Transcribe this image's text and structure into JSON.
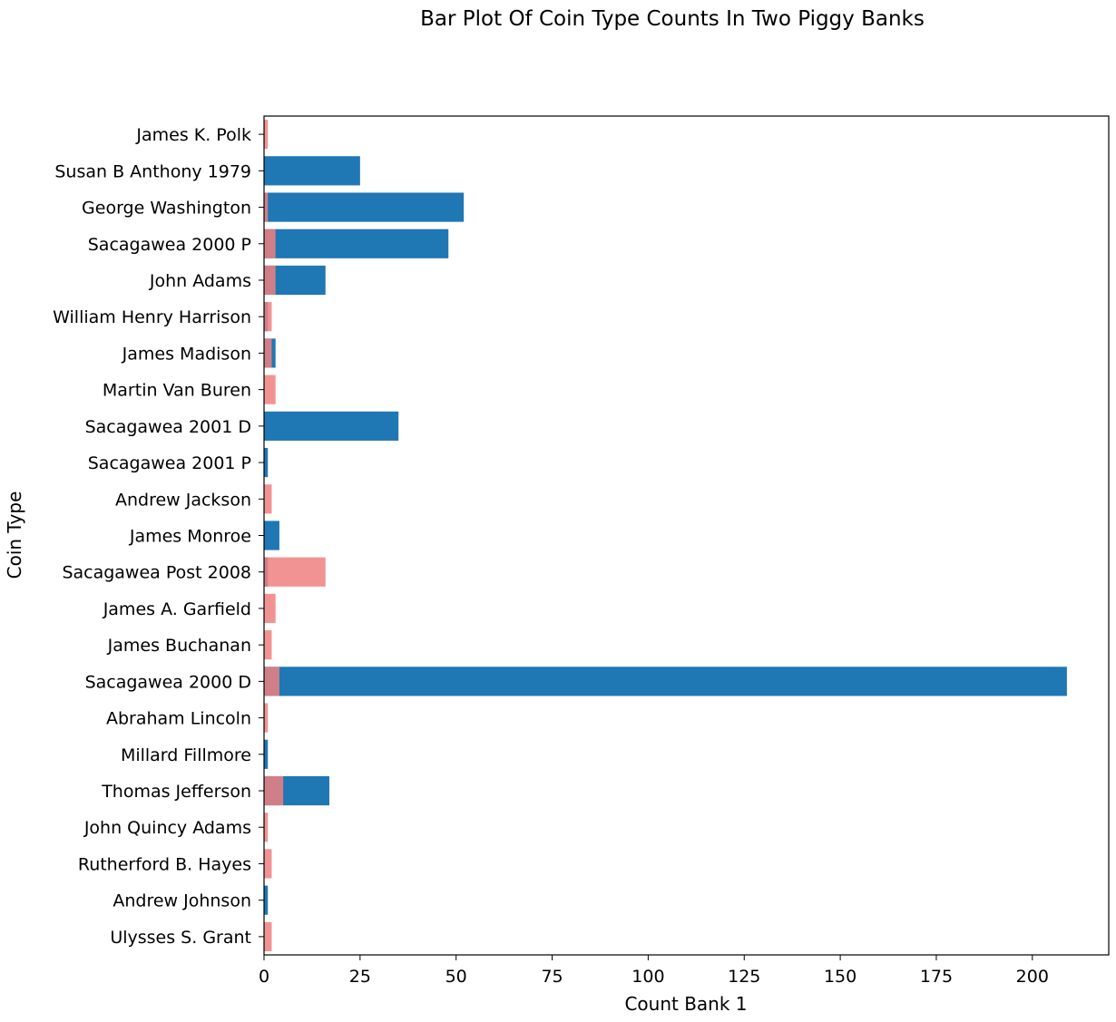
{
  "chart_data": {
    "type": "bar",
    "orientation": "horizontal",
    "title": "Bar Plot Of Coin Type Counts In Two Piggy Banks",
    "xlabel": "Count Bank 1",
    "ylabel": "Coin Type",
    "xlim": [
      0,
      220
    ],
    "xticks": [
      0,
      25,
      50,
      75,
      100,
      125,
      150,
      175,
      200
    ],
    "grid": false,
    "legend": "none",
    "categories": [
      "James K. Polk",
      "Susan B Anthony 1979",
      "George Washington",
      "Sacagawea 2000 P",
      "John Adams",
      "William Henry Harrison",
      "James Madison",
      "Martin Van Buren",
      "Sacagawea 2001 D",
      "Sacagawea 2001 P",
      "Andrew Jackson",
      "James Monroe",
      "Sacagawea Post 2008",
      "James A. Garfield",
      "James Buchanan",
      "Sacagawea 2000 D",
      "Abraham Lincoln",
      "Millard Fillmore",
      "Thomas Jefferson",
      "John Quincy Adams",
      "Rutherford B. Hayes",
      "Andrew Johnson",
      "Ulysses S. Grant"
    ],
    "series": [
      {
        "color": "#1f77b4",
        "values": [
          0,
          25,
          52,
          48,
          16,
          1,
          3,
          0,
          35,
          1,
          0,
          4,
          1,
          0,
          0,
          209,
          0,
          1,
          17,
          0,
          0,
          1,
          0
        ]
      },
      {
        "color": "#f08080",
        "values": [
          1,
          0,
          1,
          3,
          3,
          2,
          2,
          3,
          0,
          0,
          2,
          0,
          16,
          3,
          2,
          4,
          1,
          0,
          5,
          1,
          2,
          0,
          2
        ]
      }
    ]
  }
}
